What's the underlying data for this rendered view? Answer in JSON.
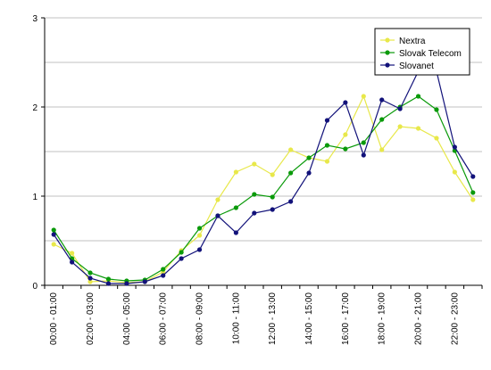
{
  "chart_data": {
    "type": "line",
    "title": "",
    "xlabel": "",
    "ylabel": "",
    "ylim": [
      0,
      3
    ],
    "yticks": [
      "0",
      "1",
      "2",
      "3"
    ],
    "x_tick_labels": [
      "00:00 - 01:00",
      "",
      "02:00 - 03:00",
      "",
      "04:00 - 05:00",
      "",
      "06:00 - 07:00",
      "",
      "08:00 - 09:00",
      "",
      "10:00 - 11:00",
      "",
      "12:00 - 13:00",
      "",
      "14:00 - 15:00",
      "",
      "16:00 - 17:00",
      "",
      "18:00 - 19:00",
      "",
      "20:00 - 21:00",
      "",
      "22:00 - 23:00",
      ""
    ],
    "grid": true,
    "legend_position": "top-right",
    "series": [
      {
        "name": "Nextra",
        "color": "#e8e84a",
        "values": [
          0.46,
          0.36,
          0.04,
          0.05,
          0.03,
          0.04,
          0.15,
          0.39,
          0.56,
          0.96,
          1.27,
          1.36,
          1.24,
          1.52,
          1.43,
          1.39,
          1.69,
          2.12,
          1.52,
          1.78,
          1.76,
          1.65,
          1.27,
          0.96
        ]
      },
      {
        "name": "Slovak Telecom",
        "color": "#0a9a0a",
        "values": [
          0.62,
          0.3,
          0.14,
          0.07,
          0.05,
          0.06,
          0.18,
          0.37,
          0.64,
          0.78,
          0.87,
          1.02,
          0.99,
          1.26,
          1.43,
          1.57,
          1.53,
          1.6,
          1.86,
          2.0,
          2.12,
          1.97,
          1.51,
          1.04
        ]
      },
      {
        "name": "Slovanet",
        "color": "#12127a",
        "values": [
          0.57,
          0.26,
          0.08,
          0.02,
          0.02,
          0.04,
          0.11,
          0.3,
          0.4,
          0.78,
          0.59,
          0.81,
          0.85,
          0.94,
          1.26,
          1.85,
          2.05,
          1.46,
          2.08,
          1.98,
          2.4,
          2.4,
          1.55,
          1.22
        ]
      }
    ]
  }
}
